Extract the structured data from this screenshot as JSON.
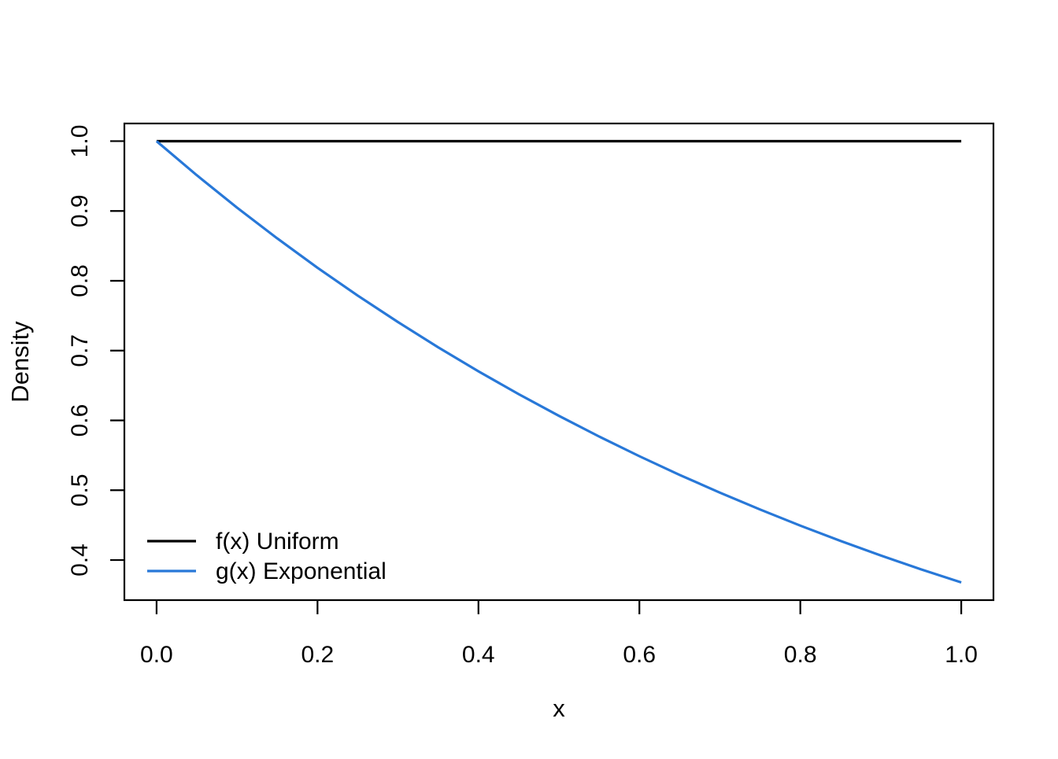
{
  "figure": {
    "background_color": "#ffffff",
    "axis_color": "#000000"
  },
  "chart_data": {
    "type": "line",
    "title": "",
    "xlabel": "x",
    "ylabel": "Density",
    "xlim": [
      0,
      1
    ],
    "ylim": [
      0.3679,
      1.0
    ],
    "grid": false,
    "legend_position": "bottom-left",
    "x_ticks": [
      "0.0",
      "0.2",
      "0.4",
      "0.6",
      "0.8",
      "1.0"
    ],
    "y_ticks": [
      "0.4",
      "0.5",
      "0.6",
      "0.7",
      "0.8",
      "0.9",
      "1.0"
    ],
    "series": [
      {
        "name": "f(x) Uniform",
        "color": "#000000",
        "x": [
          0,
          1
        ],
        "y": [
          1,
          1
        ]
      },
      {
        "name": "g(x) Exponential",
        "color": "#2878D8",
        "x": [
          0,
          0.05,
          0.1,
          0.15,
          0.2,
          0.25,
          0.3,
          0.35,
          0.4,
          0.45,
          0.5,
          0.55,
          0.6,
          0.65,
          0.7,
          0.75,
          0.8,
          0.85,
          0.9,
          0.95,
          1.0
        ],
        "y": [
          1.0,
          0.9512,
          0.9048,
          0.8607,
          0.8187,
          0.7788,
          0.7408,
          0.7047,
          0.6703,
          0.6376,
          0.6065,
          0.5769,
          0.5488,
          0.522,
          0.4966,
          0.4724,
          0.4493,
          0.4274,
          0.4066,
          0.3867,
          0.3679
        ]
      }
    ],
    "legend": [
      {
        "label": "f(x) Uniform",
        "color": "#000000"
      },
      {
        "label": "g(x) Exponential",
        "color": "#2878D8"
      }
    ]
  }
}
